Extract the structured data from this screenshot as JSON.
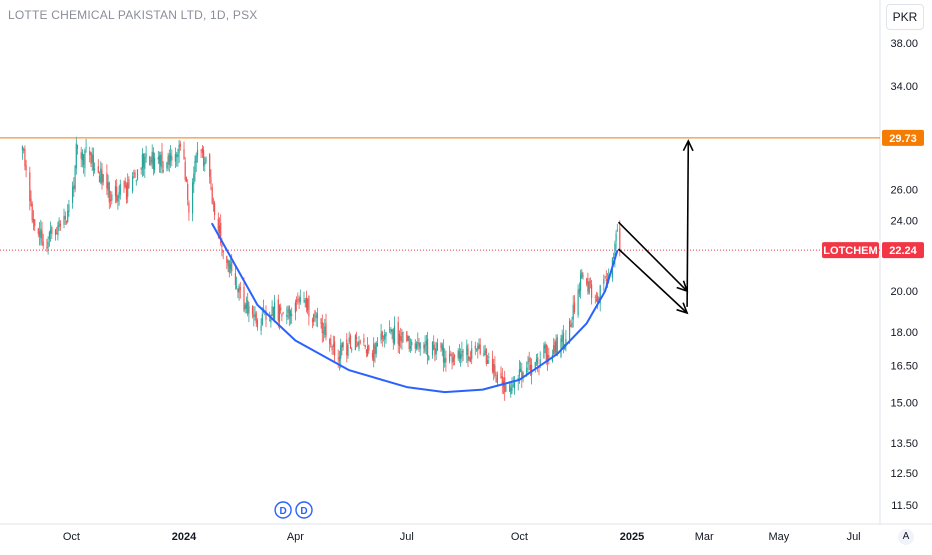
{
  "header": {
    "title": "LOTTE CHEMICAL PAKISTAN LTD, 1D, PSX",
    "currency_button": "PKR",
    "auto_button": "A"
  },
  "colors": {
    "up": "#26a69a",
    "down": "#ef5350",
    "resistance": "#f57c00",
    "last_price": "#f23645",
    "curve": "#2962ff",
    "arrows": "#000000"
  },
  "chart_data": {
    "type": "candlestick",
    "title": "LOTTE CHEMICAL PAKISTAN LTD, 1D, PSX",
    "y_scale": "log",
    "ylim": [
      11.0,
      42.0
    ],
    "y_ticks": [
      "38.00",
      "34.00",
      "29.73",
      "26.00",
      "24.00",
      "22.24",
      "20.00",
      "18.00",
      "16.50",
      "15.00",
      "13.50",
      "12.50",
      "11.50"
    ],
    "x_ticks": [
      "Oct",
      "2024",
      "Apr",
      "Jul",
      "Oct",
      "2025",
      "Mar",
      "May",
      "Jul"
    ],
    "x_tick_dates": [
      "2023-10-01",
      "2024-01-01",
      "2024-04-01",
      "2024-07-01",
      "2024-10-01",
      "2025-01-01",
      "2025-03-01",
      "2025-05-01",
      "2025-07-01"
    ],
    "x_range": [
      "2023-08-21",
      "2025-08-05"
    ],
    "resistance_level": {
      "value": 29.73,
      "label": "29.73"
    },
    "last_price": {
      "symbol": "LOTCHEM",
      "value": 22.24,
      "label": "22.24"
    },
    "dividend_markers": [
      {
        "label": "D",
        "date": "2024-03-22"
      },
      {
        "label": "D",
        "date": "2024-04-08"
      }
    ],
    "price_path": [
      [
        "2023-08-22",
        29.6
      ],
      [
        "2023-08-27",
        25.2
      ],
      [
        "2023-09-10",
        22.4
      ],
      [
        "2023-09-20",
        23.7
      ],
      [
        "2023-10-01",
        24.8
      ],
      [
        "2023-10-05",
        28.8
      ],
      [
        "2023-10-20",
        27.9
      ],
      [
        "2023-11-01",
        25.8
      ],
      [
        "2023-11-15",
        25.8
      ],
      [
        "2023-11-30",
        28.2
      ],
      [
        "2023-12-15",
        28.0
      ],
      [
        "2023-12-30",
        29.1
      ],
      [
        "2024-01-05",
        25.0
      ],
      [
        "2024-01-10",
        28.4
      ],
      [
        "2024-01-18",
        28.0
      ],
      [
        "2024-01-24",
        25.6
      ],
      [
        "2024-01-30",
        23.2
      ],
      [
        "2024-02-10",
        20.6
      ],
      [
        "2024-02-20",
        19.2
      ],
      [
        "2024-03-01",
        18.6
      ],
      [
        "2024-03-15",
        19.0
      ],
      [
        "2024-03-28",
        18.7
      ],
      [
        "2024-04-08",
        19.5
      ],
      [
        "2024-04-22",
        18.4
      ],
      [
        "2024-05-05",
        16.8
      ],
      [
        "2024-05-15",
        17.5
      ],
      [
        "2024-06-01",
        17.2
      ],
      [
        "2024-06-20",
        17.9
      ],
      [
        "2024-07-05",
        17.5
      ],
      [
        "2024-07-25",
        17.1
      ],
      [
        "2024-08-15",
        16.9
      ],
      [
        "2024-08-30",
        17.1
      ],
      [
        "2024-09-10",
        16.2
      ],
      [
        "2024-09-22",
        15.6
      ],
      [
        "2024-10-05",
        16.1
      ],
      [
        "2024-10-20",
        17.0
      ],
      [
        "2024-11-01",
        17.3
      ],
      [
        "2024-11-10",
        17.9
      ],
      [
        "2024-11-20",
        20.6
      ],
      [
        "2024-12-05",
        19.8
      ],
      [
        "2024-12-15",
        21.0
      ],
      [
        "2024-12-21",
        23.9
      ],
      [
        "2024-12-22",
        22.24
      ]
    ],
    "cup_curve": [
      [
        "2024-01-24",
        23.8
      ],
      [
        "2024-03-01",
        19.3
      ],
      [
        "2024-04-01",
        17.6
      ],
      [
        "2024-05-15",
        16.3
      ],
      [
        "2024-07-01",
        15.6
      ],
      [
        "2024-08-01",
        15.4
      ],
      [
        "2024-09-01",
        15.5
      ],
      [
        "2024-10-01",
        15.9
      ],
      [
        "2024-11-01",
        17.0
      ],
      [
        "2024-11-25",
        18.4
      ],
      [
        "2024-12-10",
        20.0
      ],
      [
        "2024-12-20",
        22.2
      ]
    ],
    "projection_arrows": [
      {
        "from": [
          "2024-12-21",
          23.9
        ],
        "to": [
          "2025-02-15",
          20.0
        ]
      },
      {
        "from": [
          "2024-12-21",
          22.3
        ],
        "to": [
          "2025-02-15",
          18.9
        ]
      },
      {
        "from": [
          "2025-02-15",
          19.2
        ],
        "to": [
          "2025-02-16",
          29.5
        ]
      }
    ]
  }
}
